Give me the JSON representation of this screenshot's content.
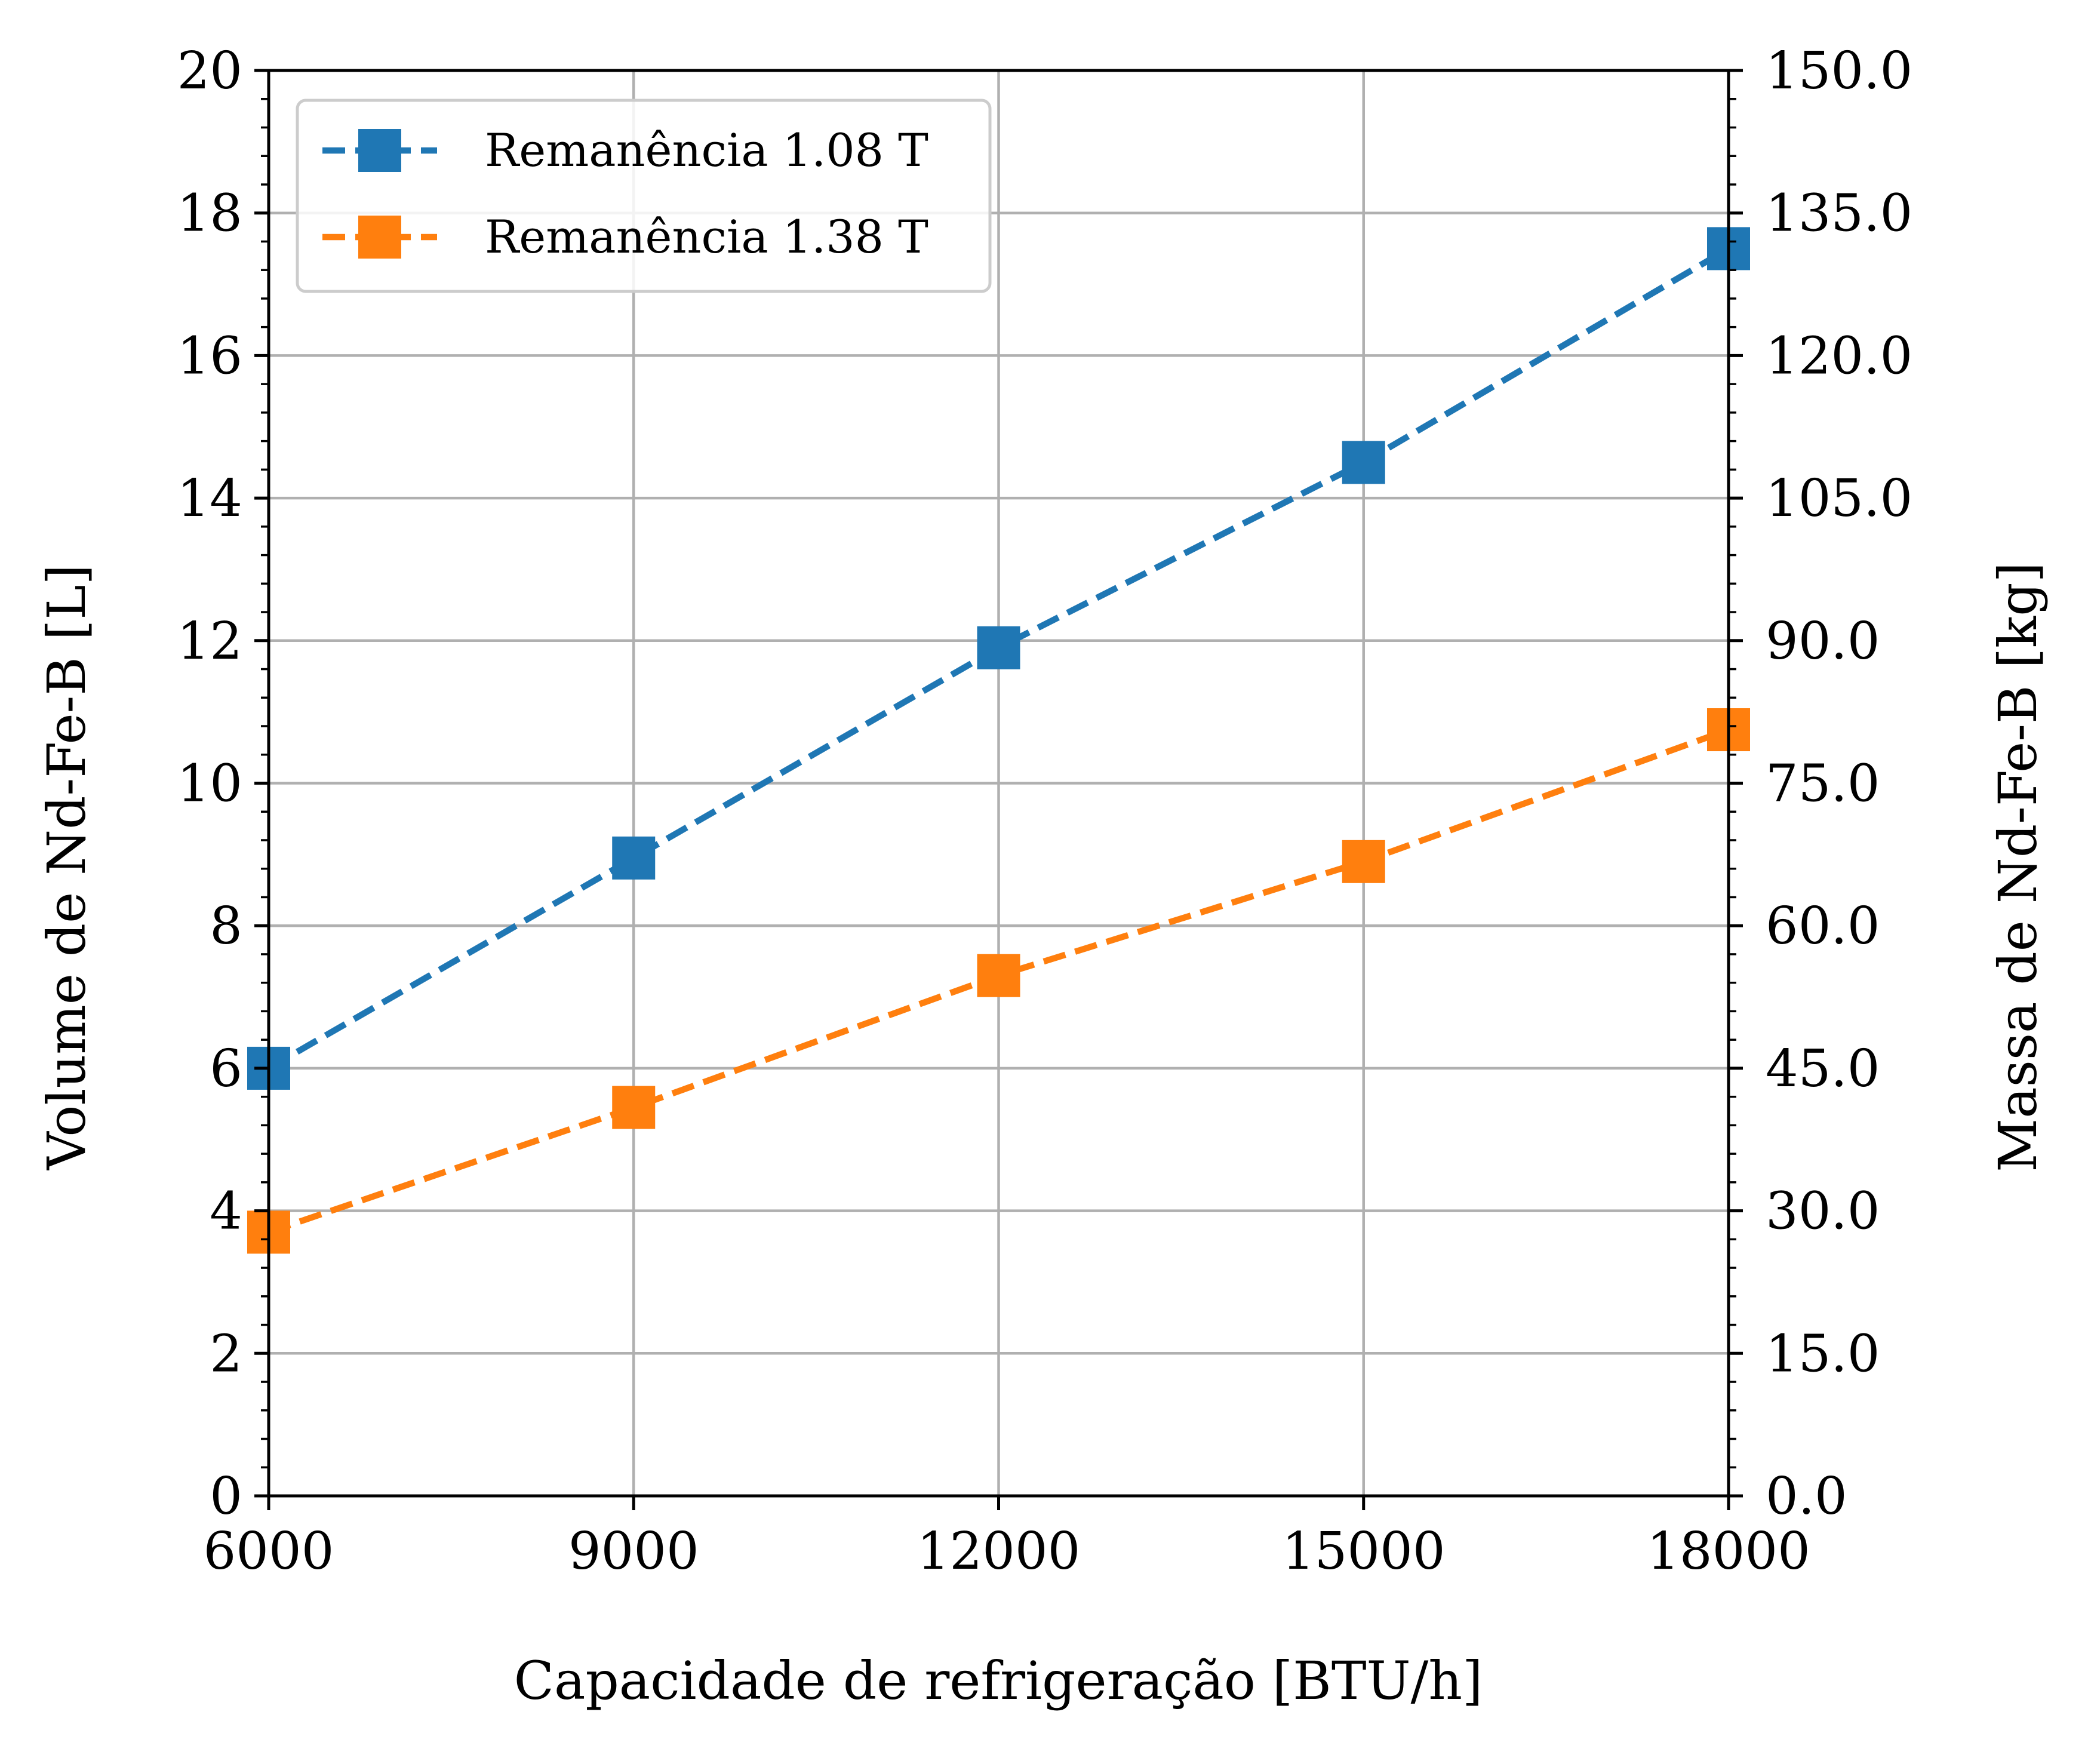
{
  "chart_data": {
    "type": "line",
    "x": [
      6000,
      9000,
      12000,
      15000,
      18000
    ],
    "xlabel": "Capacidade de refrigeração [BTU/h]",
    "ylabel": "Volume de Nd-Fe-B [L]",
    "y2label": "Massa de Nd-Fe-B [kg]",
    "xlim": [
      6000,
      18000
    ],
    "ylim": [
      0,
      20
    ],
    "y2lim": [
      0,
      150
    ],
    "xticks": [
      "6000",
      "9000",
      "12000",
      "15000",
      "18000"
    ],
    "yticks": [
      "0",
      "2",
      "4",
      "6",
      "8",
      "10",
      "12",
      "14",
      "16",
      "18",
      "20"
    ],
    "y2ticks": [
      "0.0",
      "15.0",
      "30.0",
      "45.0",
      "60.0",
      "75.0",
      "90.0",
      "105.0",
      "120.0",
      "135.0",
      "150.0"
    ],
    "grid": true,
    "legend_position": "top-left",
    "series": [
      {
        "name": "Remanência 1.08 T",
        "color": "#1f77b4",
        "marker": "square",
        "linestyle": "dashed",
        "values": [
          6.0,
          8.95,
          11.9,
          14.5,
          17.5
        ]
      },
      {
        "name": "Remanência 1.38 T",
        "color": "#ff7f0e",
        "marker": "square",
        "linestyle": "dashed",
        "values": [
          3.7,
          5.45,
          7.3,
          8.9,
          10.75
        ]
      }
    ]
  }
}
